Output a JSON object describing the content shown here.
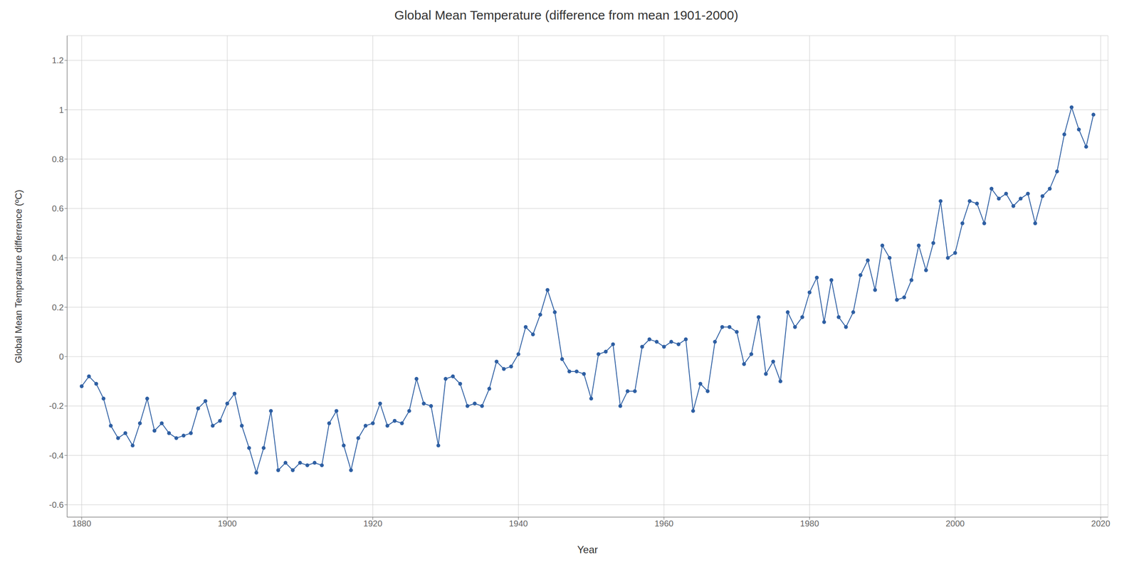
{
  "chart_data": {
    "type": "line",
    "title": "Global Mean Temperature (difference from mean 1901-2000)",
    "x_label": "Year",
    "y_label": "Global Mean Temperature differrence (ºC)",
    "xlim": [
      1878,
      2021
    ],
    "ylim": [
      -0.65,
      1.3
    ],
    "xticks": [
      1880,
      1900,
      1920,
      1940,
      1960,
      1980,
      2000,
      2020
    ],
    "yticks": [
      -0.6,
      -0.4,
      -0.2,
      0,
      0.2,
      0.4,
      0.6,
      0.8,
      1.0,
      1.2
    ],
    "grid": true,
    "x": [
      1880,
      1881,
      1882,
      1883,
      1884,
      1885,
      1886,
      1887,
      1888,
      1889,
      1890,
      1891,
      1892,
      1893,
      1894,
      1895,
      1896,
      1897,
      1898,
      1899,
      1900,
      1901,
      1902,
      1903,
      1904,
      1905,
      1906,
      1907,
      1908,
      1909,
      1910,
      1911,
      1912,
      1913,
      1914,
      1915,
      1916,
      1917,
      1918,
      1919,
      1920,
      1921,
      1922,
      1923,
      1924,
      1925,
      1926,
      1927,
      1928,
      1929,
      1930,
      1931,
      1932,
      1933,
      1934,
      1935,
      1936,
      1937,
      1938,
      1939,
      1940,
      1941,
      1942,
      1943,
      1944,
      1945,
      1946,
      1947,
      1948,
      1949,
      1950,
      1951,
      1952,
      1953,
      1954,
      1955,
      1956,
      1957,
      1958,
      1959,
      1960,
      1961,
      1962,
      1963,
      1964,
      1965,
      1966,
      1967,
      1968,
      1969,
      1970,
      1971,
      1972,
      1973,
      1974,
      1975,
      1976,
      1977,
      1978,
      1979,
      1980,
      1981,
      1982,
      1983,
      1984,
      1985,
      1986,
      1987,
      1988,
      1989,
      1990,
      1991,
      1992,
      1993,
      1994,
      1995,
      1996,
      1997,
      1998,
      1999,
      2000,
      2001,
      2002,
      2003,
      2004,
      2005,
      2006,
      2007,
      2008,
      2009,
      2010,
      2011,
      2012,
      2013,
      2014,
      2015,
      2016,
      2017,
      2018,
      2019
    ],
    "values": [
      -0.12,
      -0.08,
      -0.11,
      -0.17,
      -0.28,
      -0.33,
      -0.31,
      -0.36,
      -0.27,
      -0.17,
      -0.3,
      -0.27,
      -0.31,
      -0.33,
      -0.32,
      -0.31,
      -0.21,
      -0.18,
      -0.28,
      -0.26,
      -0.19,
      -0.15,
      -0.28,
      -0.37,
      -0.47,
      -0.37,
      -0.22,
      -0.46,
      -0.43,
      -0.46,
      -0.43,
      -0.44,
      -0.43,
      -0.44,
      -0.27,
      -0.22,
      -0.36,
      -0.46,
      -0.33,
      -0.28,
      -0.27,
      -0.19,
      -0.28,
      -0.26,
      -0.27,
      -0.22,
      -0.09,
      -0.19,
      -0.2,
      -0.36,
      -0.09,
      -0.08,
      -0.11,
      -0.2,
      -0.19,
      -0.2,
      -0.13,
      -0.02,
      -0.05,
      -0.04,
      0.01,
      0.12,
      0.09,
      0.17,
      0.27,
      0.18,
      -0.01,
      -0.06,
      -0.06,
      -0.07,
      -0.17,
      0.01,
      0.02,
      0.05,
      -0.2,
      -0.14,
      -0.14,
      0.04,
      0.07,
      0.06,
      0.04,
      0.06,
      0.05,
      0.07,
      -0.22,
      -0.11,
      -0.14,
      0.06,
      0.12,
      0.12,
      0.1,
      -0.03,
      0.01,
      0.16,
      -0.07,
      -0.02,
      -0.1,
      0.18,
      0.12,
      0.16,
      0.26,
      0.32,
      0.14,
      0.31,
      0.16,
      0.12,
      0.18,
      0.33,
      0.39,
      0.27,
      0.45,
      0.4,
      0.23,
      0.24,
      0.31,
      0.45,
      0.35,
      0.46,
      0.63,
      0.4,
      0.42,
      0.54,
      0.63,
      0.62,
      0.54,
      0.68,
      0.64,
      0.66,
      0.61,
      0.64,
      0.66,
      0.54,
      0.65,
      0.68,
      0.75,
      0.9,
      1.01,
      0.92,
      0.85,
      0.98
    ],
    "color": "#2E5FA3",
    "marker": "circle",
    "line_style": "solid",
    "grid_color": "#cccccc"
  }
}
